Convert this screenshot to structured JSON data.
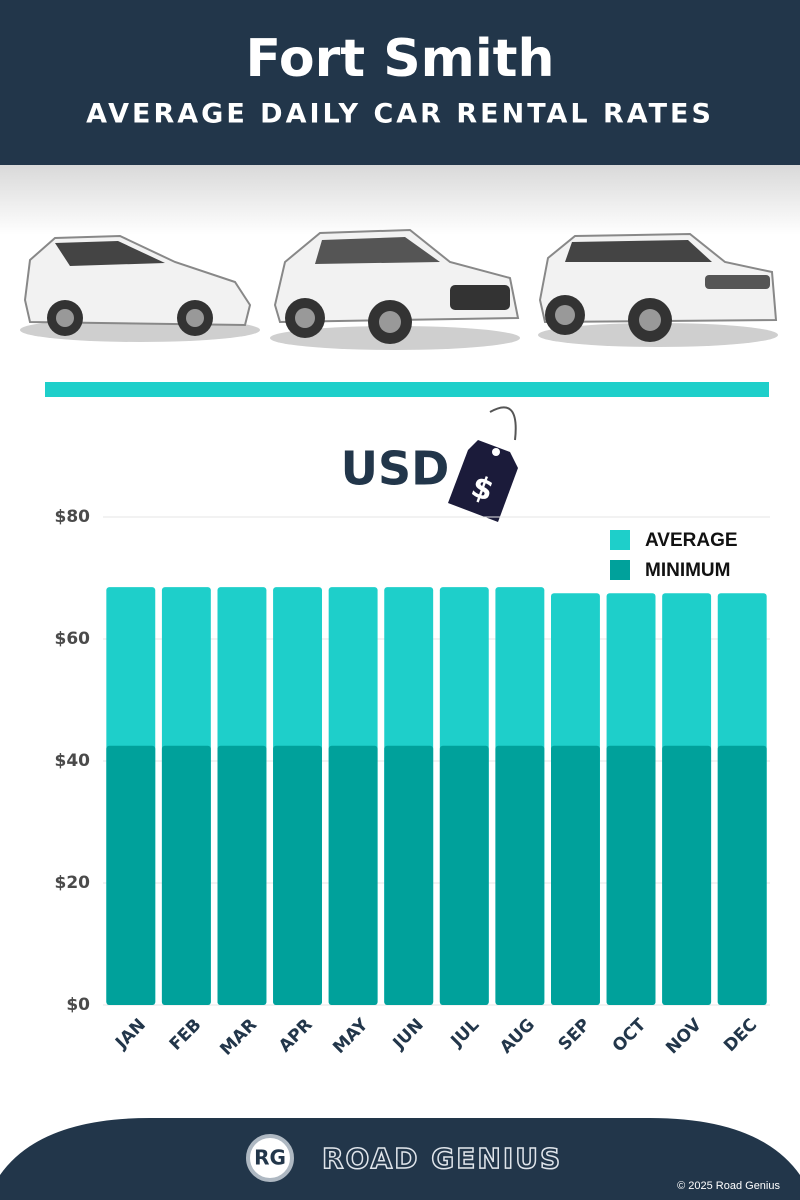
{
  "header": {
    "title": "Fort Smith",
    "subtitle": "AVERAGE DAILY CAR RENTAL RATES"
  },
  "chart_data": {
    "type": "bar",
    "mode": "overlay",
    "unit_label": "USD",
    "tag_symbol": "$",
    "categories": [
      "JAN",
      "FEB",
      "MAR",
      "APR",
      "MAY",
      "JUN",
      "JUL",
      "AUG",
      "SEP",
      "OCT",
      "NOV",
      "DEC"
    ],
    "series": [
      {
        "name": "AVERAGE",
        "color": "#1ecfca",
        "values": [
          68.5,
          68.5,
          68.5,
          68.5,
          68.5,
          68.5,
          68.5,
          68.5,
          67.5,
          67.5,
          67.5,
          67.5
        ]
      },
      {
        "name": "MINIMUM",
        "color": "#00a19b",
        "values": [
          42.5,
          42.5,
          42.5,
          42.5,
          42.5,
          42.5,
          42.5,
          42.5,
          42.5,
          42.5,
          42.5,
          42.5
        ]
      }
    ],
    "ylim": [
      0,
      80
    ],
    "yticks": [
      {
        "value": 0,
        "label": "$0"
      },
      {
        "value": 20,
        "label": "$20"
      },
      {
        "value": 40,
        "label": "$40"
      },
      {
        "value": 60,
        "label": "$60"
      },
      {
        "value": 80,
        "label": "$80"
      }
    ],
    "grid": true,
    "legend": "top-right"
  },
  "footer": {
    "logo_mark": "RG",
    "brand": "ROAD GENIUS",
    "copyright": "© 2025 Road Genius"
  }
}
